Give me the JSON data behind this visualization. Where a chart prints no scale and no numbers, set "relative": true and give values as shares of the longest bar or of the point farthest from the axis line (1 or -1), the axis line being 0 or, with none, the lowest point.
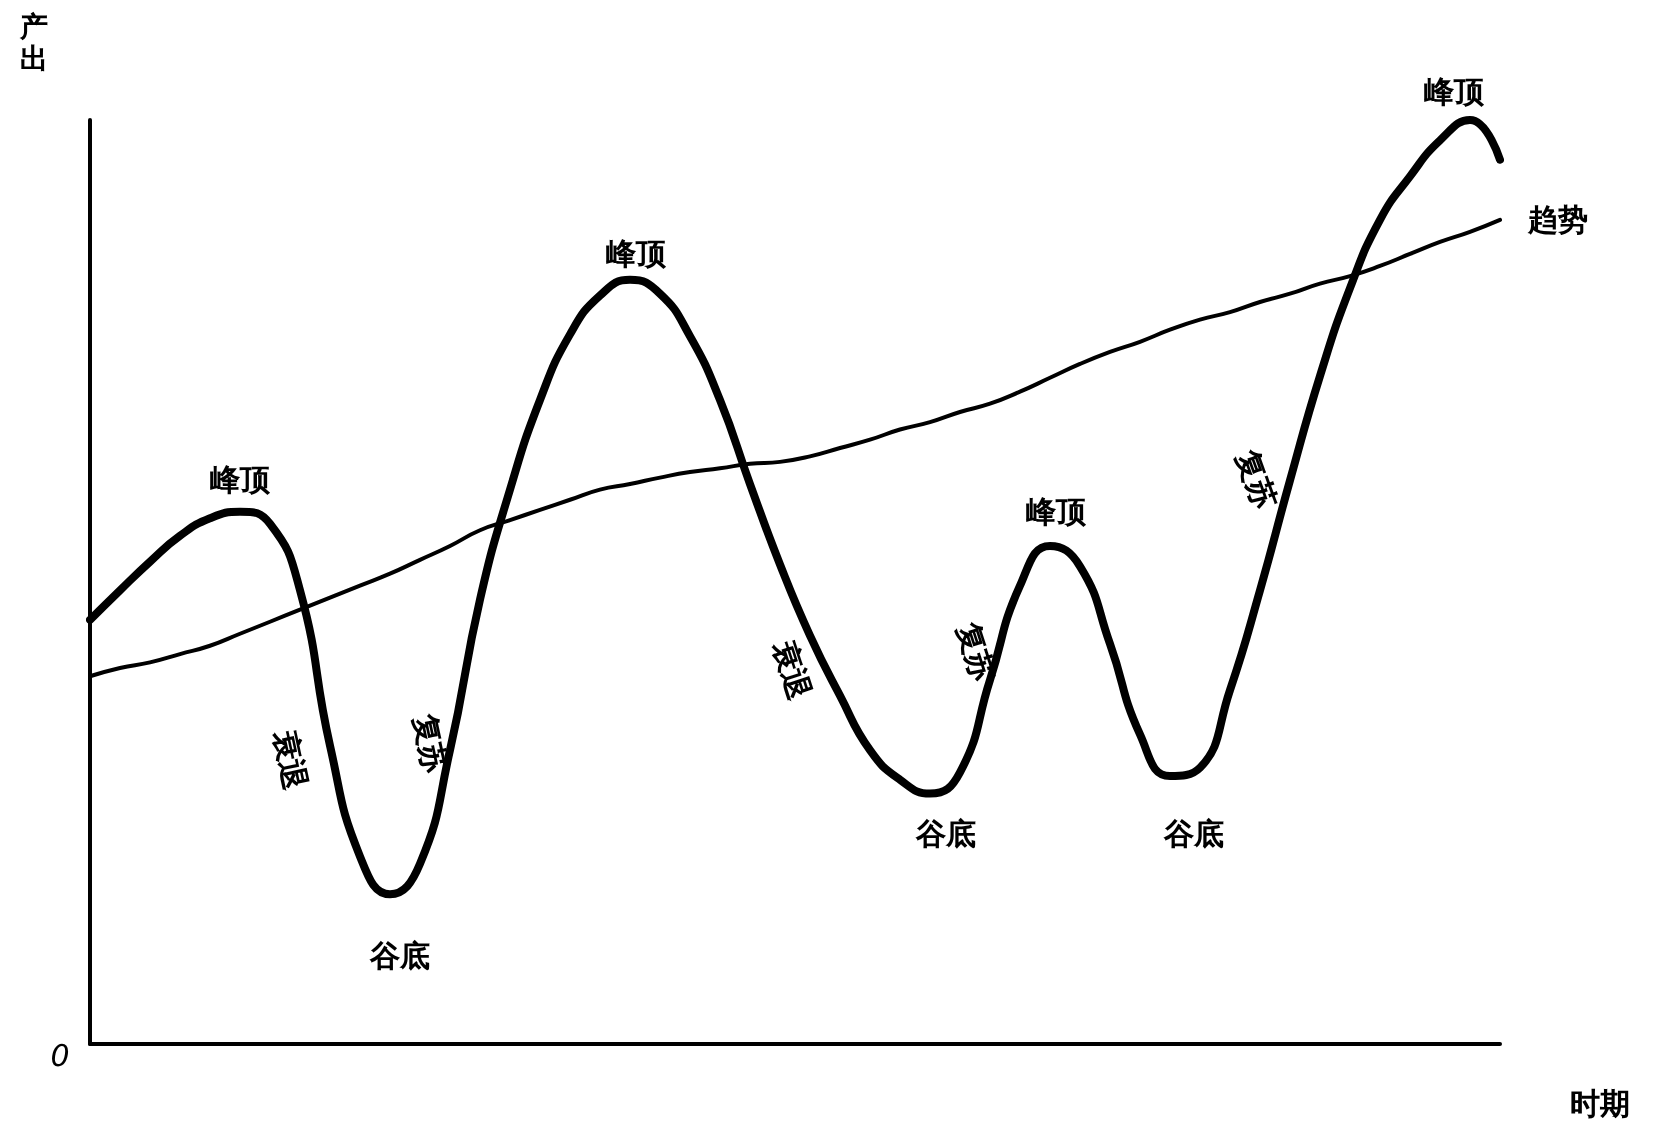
{
  "chart_data": {
    "type": "line",
    "relative": true,
    "xlabel": "时期",
    "ylabel": "产出",
    "categories": [
      null,
      null,
      null,
      null,
      null,
      null,
      null,
      null,
      null,
      null,
      null,
      null,
      null,
      null,
      null,
      null,
      null,
      null,
      null,
      null,
      null,
      null,
      null,
      null,
      null,
      null,
      null,
      null,
      null,
      null,
      null,
      null,
      null,
      null,
      null,
      null,
      null,
      null,
      null,
      null,
      null,
      null,
      null,
      null,
      null,
      null,
      null,
      null
    ],
    "series": [
      {
        "color": "#000000",
        "values": [
          0.459,
          0.491,
          0.522,
          0.55,
          0.569,
          0.576,
          0.563,
          0.491,
          0.323,
          0.203,
          0.162,
          0.195,
          0.318,
          0.481,
          0.6,
          0.697,
          0.768,
          0.81,
          0.827,
          0.812,
          0.766,
          0.697,
          0.606,
          0.519,
          0.442,
          0.377,
          0.318,
          0.286,
          0.271,
          0.294,
          0.394,
          0.496,
          0.539,
          0.517,
          0.433,
          0.335,
          0.29,
          0.299,
          0.383,
          0.491,
          0.61,
          0.723,
          0.818,
          0.892,
          0.939,
          0.978,
          1,
          0.957
        ]
      },
      {
        "name": "趋势",
        "color": "#000000",
        "values": [
          0.398,
          0.407,
          0.413,
          0.422,
          0.431,
          0.444,
          0.457,
          0.47,
          0.483,
          0.496,
          0.509,
          0.524,
          0.539,
          0.556,
          0.567,
          0.578,
          0.589,
          0.6,
          0.606,
          0.613,
          0.619,
          0.623,
          0.628,
          0.63,
          0.636,
          0.645,
          0.654,
          0.665,
          0.673,
          0.684,
          0.693,
          0.706,
          0.721,
          0.736,
          0.749,
          0.76,
          0.773,
          0.784,
          0.792,
          0.803,
          0.812,
          0.823,
          0.831,
          0.842,
          0.855,
          0.868,
          0.879,
          0.892
        ]
      }
    ],
    "annotations": [
      "0",
      "峰顶",
      "衰退",
      "谷底",
      "复苏",
      "峰顶",
      "衰退",
      "谷底",
      "复苏",
      "峰顶",
      "谷底",
      "复苏",
      "峰顶"
    ],
    "grid": false,
    "legend": false,
    "marker": "none",
    "line_style": "solid"
  }
}
